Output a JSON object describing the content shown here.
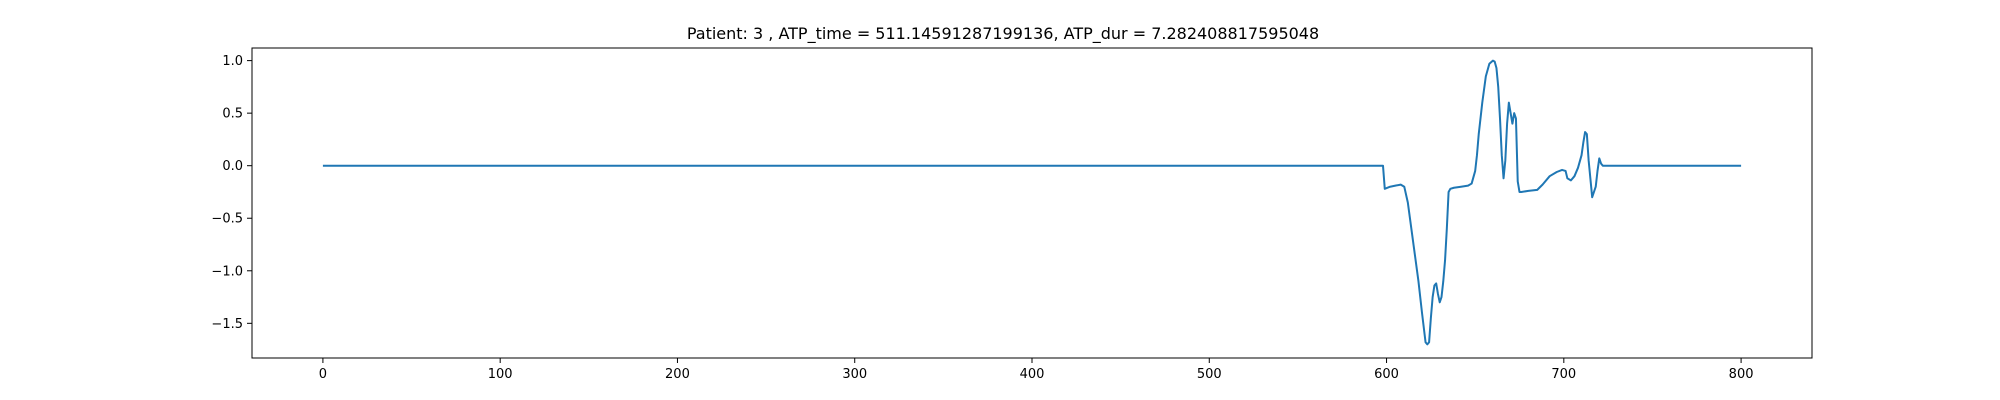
{
  "chart_data": {
    "type": "line",
    "title": "Patient: 3 , ATP_time = 511.14591287199136, ATP_dur = 7.282408817595048",
    "xlabel": "",
    "ylabel": "",
    "xlim": [
      -40,
      840
    ],
    "ylim": [
      -1.83,
      1.12
    ],
    "xticks": [
      0,
      100,
      200,
      300,
      400,
      500,
      600,
      700,
      800
    ],
    "yticks": [
      1.0,
      0.5,
      0.0,
      -0.5,
      -1.0,
      -1.5
    ],
    "ytick_labels": [
      "1.0",
      "0.5",
      "0.0",
      "−0.5",
      "−1.0",
      "−1.5"
    ],
    "grid": false,
    "series": [
      {
        "color": "#1f77b4",
        "x": [
          0,
          100,
          200,
          300,
          400,
          500,
          598,
          599,
          602,
          605,
          608,
          610,
          612,
          614,
          616,
          618,
          620,
          622,
          623,
          624,
          625,
          626,
          627,
          628,
          629,
          630,
          631,
          632,
          633,
          634,
          635,
          636,
          638,
          642,
          646,
          648,
          650,
          651,
          652,
          654,
          656,
          658,
          660,
          661,
          662,
          663,
          664,
          665,
          666,
          667,
          668,
          669,
          670,
          671,
          672,
          673,
          674,
          675,
          676,
          680,
          685,
          688,
          692,
          696,
          699,
          701,
          702,
          704,
          706,
          708,
          710,
          711,
          712,
          713,
          714,
          716,
          718,
          719,
          720,
          721,
          722,
          740,
          760,
          780,
          800
        ],
        "y": [
          0,
          0,
          0,
          0,
          0,
          0,
          0,
          -0.22,
          -0.2,
          -0.19,
          -0.18,
          -0.2,
          -0.35,
          -0.6,
          -0.85,
          -1.1,
          -1.4,
          -1.68,
          -1.7,
          -1.68,
          -1.45,
          -1.25,
          -1.14,
          -1.12,
          -1.22,
          -1.3,
          -1.25,
          -1.1,
          -0.9,
          -0.6,
          -0.25,
          -0.22,
          -0.21,
          -0.2,
          -0.19,
          -0.17,
          -0.05,
          0.1,
          0.3,
          0.6,
          0.85,
          0.97,
          1.0,
          0.99,
          0.93,
          0.75,
          0.45,
          0.1,
          -0.12,
          0.05,
          0.4,
          0.6,
          0.5,
          0.4,
          0.5,
          0.45,
          -0.15,
          -0.25,
          -0.25,
          -0.24,
          -0.23,
          -0.18,
          -0.1,
          -0.06,
          -0.04,
          -0.05,
          -0.12,
          -0.14,
          -0.1,
          -0.02,
          0.1,
          0.22,
          0.32,
          0.3,
          0.05,
          -0.3,
          -0.2,
          -0.05,
          0.07,
          0.02,
          0,
          0,
          0,
          0,
          0
        ]
      }
    ]
  }
}
